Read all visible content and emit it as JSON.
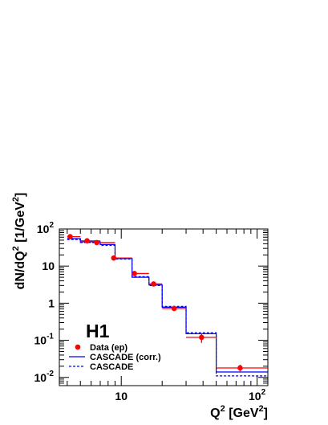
{
  "chart_data": {
    "type": "line",
    "brand_label": "H1",
    "xlabel": "Q",
    "xlabel_sup": "2",
    "xlabel_unit_open": " [GeV",
    "xlabel_unit_sup": "2",
    "xlabel_unit_close": "]",
    "ylabel_main": "dN/dQ",
    "ylabel_sup": "2",
    "ylabel_unit_open": " [1/GeV",
    "ylabel_unit_sup": "2",
    "ylabel_unit_close": "]",
    "x_scale": "log",
    "y_scale": "log",
    "xlim": [
      3.5,
      120
    ],
    "ylim": [
      0.006,
      100
    ],
    "x_ticks": [
      {
        "value": 10,
        "base": "10",
        "sup": ""
      },
      {
        "value": 100,
        "base": "10",
        "sup": "2"
      }
    ],
    "y_ticks": [
      {
        "value": 0.01,
        "base": "10",
        "sup": "-2"
      },
      {
        "value": 0.1,
        "base": "10",
        "sup": "-1"
      },
      {
        "value": 1,
        "base": "1",
        "sup": ""
      },
      {
        "value": 10,
        "base": "10",
        "sup": ""
      },
      {
        "value": 100,
        "base": "10",
        "sup": "2"
      }
    ],
    "bin_edges": [
      4,
      5,
      7,
      9,
      12,
      16,
      20,
      30,
      50,
      120
    ],
    "series": [
      {
        "name": "Data (ep)",
        "kind": "points",
        "color": "#ff0000",
        "x": [
          4.2,
          5.6,
          6.6,
          8.8,
          12.5,
          17.3,
          24.5,
          39,
          75
        ],
        "y": [
          62,
          48,
          43,
          16.5,
          6.3,
          3.3,
          0.72,
          0.12,
          0.018
        ],
        "y_err_low": [
          55,
          45,
          40,
          15,
          5.8,
          3.0,
          0.64,
          0.085,
          0.014
        ],
        "y_err_high": [
          70,
          51,
          46,
          18,
          6.8,
          3.6,
          0.8,
          0.15,
          0.022
        ]
      },
      {
        "name": "CASCADE (corr.)",
        "kind": "hist",
        "style": "solid",
        "color": "#0000ff",
        "values": [
          55,
          45,
          38,
          16,
          5.0,
          3.1,
          0.78,
          0.15,
          0.014
        ]
      },
      {
        "name": "CASCADE",
        "kind": "hist",
        "style": "dashed",
        "color": "#0000ff",
        "values": [
          52,
          43,
          36,
          15.5,
          5.2,
          3.0,
          0.82,
          0.16,
          0.011
        ]
      }
    ],
    "legend": {
      "placement": "bottom-left",
      "items": [
        {
          "label": "Data (ep)",
          "symbol": "dot"
        },
        {
          "label": "CASCADE (corr.)",
          "symbol": "solid"
        },
        {
          "label": "CASCADE",
          "symbol": "dashed"
        }
      ]
    },
    "grid": false
  }
}
